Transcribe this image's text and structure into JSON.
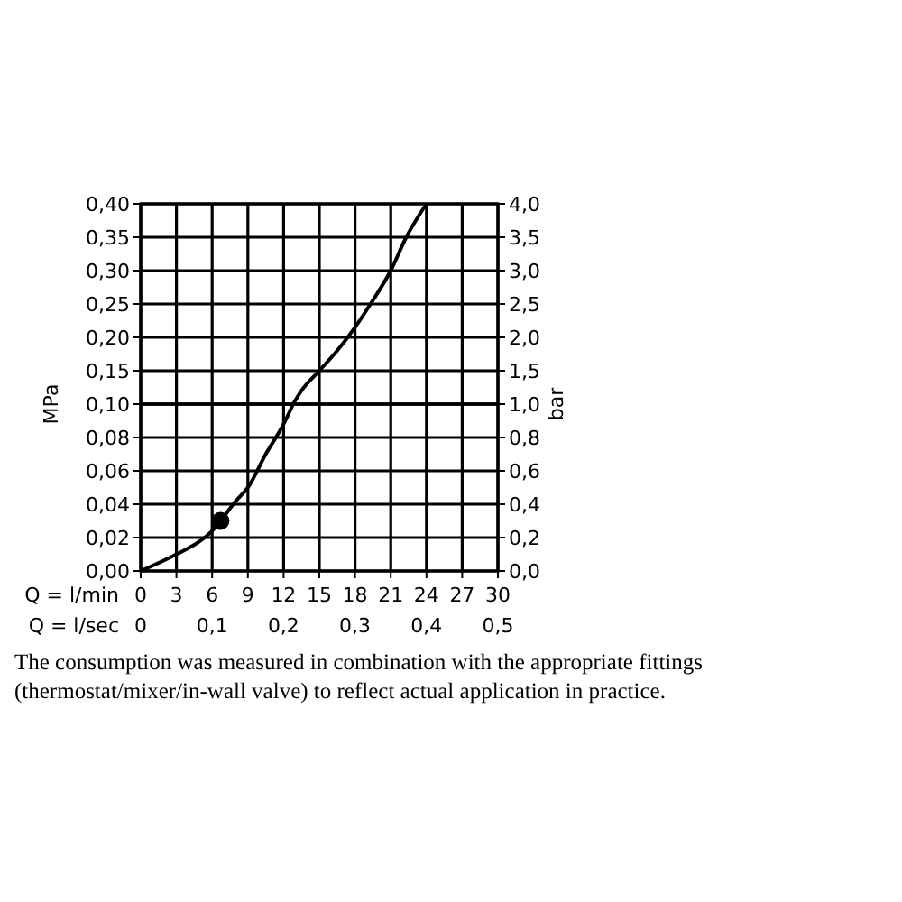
{
  "chart_data": [
    {
      "type": "line",
      "ylabel": "MPa",
      "y2label": "bar",
      "tick_labels": "y",
      "xlim": [
        0,
        30
      ],
      "xticks": [
        0,
        3,
        6,
        9,
        12,
        15,
        18,
        21,
        24,
        27,
        30
      ],
      "ylim": [
        0.1,
        0.4
      ],
      "yticks": [
        {
          "value": 0.1,
          "label": "0,10"
        },
        {
          "value": 0.15,
          "label": "0,15"
        },
        {
          "value": 0.2,
          "label": "0,20"
        },
        {
          "value": 0.25,
          "label": "0,25"
        },
        {
          "value": 0.3,
          "label": "0,30"
        },
        {
          "value": 0.35,
          "label": "0,35"
        },
        {
          "value": 0.4,
          "label": "0,40"
        }
      ],
      "y2lim": [
        1,
        4
      ],
      "y2ticks": [
        {
          "value": 1,
          "label": "1,0"
        },
        {
          "value": 1.5,
          "label": "1,5"
        },
        {
          "value": 2,
          "label": "2,0"
        },
        {
          "value": 2.5,
          "label": "2,5"
        },
        {
          "value": 3,
          "label": "3,0"
        },
        {
          "value": 3.5,
          "label": "3,5"
        },
        {
          "value": 4,
          "label": "4,0"
        }
      ],
      "grid": true,
      "series": [
        {
          "type": "line",
          "color": "#000000",
          "x": [
            12.8,
            13.5,
            15,
            16.5,
            18,
            19.3,
            21,
            22.3,
            24
          ],
          "values": [
            0.1,
            0.12,
            0.15,
            0.18,
            0.215,
            0.25,
            0.3,
            0.35,
            0.4
          ]
        }
      ]
    },
    {
      "type": "line",
      "xlabel": "Q = l/min",
      "x2label": "Q = l/sec",
      "xlim": [
        0,
        30
      ],
      "xticks": [
        0,
        3,
        6,
        9,
        12,
        15,
        18,
        21,
        24,
        27,
        30
      ],
      "x2lim": [
        0,
        0.5
      ],
      "x2ticks": [
        0,
        {
          "value": 0.1,
          "label": "0,1"
        },
        {
          "value": 0.2,
          "label": "0,2"
        },
        {
          "value": 0.3,
          "label": "0,3"
        },
        {
          "value": 0.4,
          "label": "0,4"
        },
        {
          "value": 0.5,
          "label": "0,5"
        }
      ],
      "ylim": [
        0,
        0.1
      ],
      "yticks": [
        {
          "value": 0,
          "label": "0,00"
        },
        {
          "value": 0.02,
          "label": "0,02"
        },
        {
          "value": 0.04,
          "label": "0,04"
        },
        {
          "value": 0.06,
          "label": "0,06"
        },
        {
          "value": 0.08,
          "label": "0,08"
        }
      ],
      "y2lim": [
        0,
        1
      ],
      "y2ticks": [
        {
          "value": 0,
          "label": "0,0"
        },
        {
          "value": 0.2,
          "label": "0,2"
        },
        {
          "value": 0.4,
          "label": "0,4"
        },
        {
          "value": 0.6,
          "label": "0,6"
        },
        {
          "value": 0.8,
          "label": "0,8"
        }
      ],
      "grid": true,
      "series": [
        {
          "type": "line",
          "color": "#000000",
          "x": [
            0,
            3,
            5,
            6,
            6.7,
            8,
            9,
            10.5,
            12,
            12.8
          ],
          "values": [
            0,
            0.01,
            0.018,
            0.024,
            0.03,
            0.042,
            0.05,
            0.07,
            0.088,
            0.1
          ]
        },
        {
          "type": "scatter",
          "color": "#000000",
          "marker": "circle",
          "x": [
            6.7
          ],
          "values": [
            0.03
          ]
        }
      ],
      "annotations": [
        "The consumption was measured in combination with the appropriate fittings (thermostat/mixer/in-wall valve) to reflect actual application in practice."
      ]
    }
  ]
}
